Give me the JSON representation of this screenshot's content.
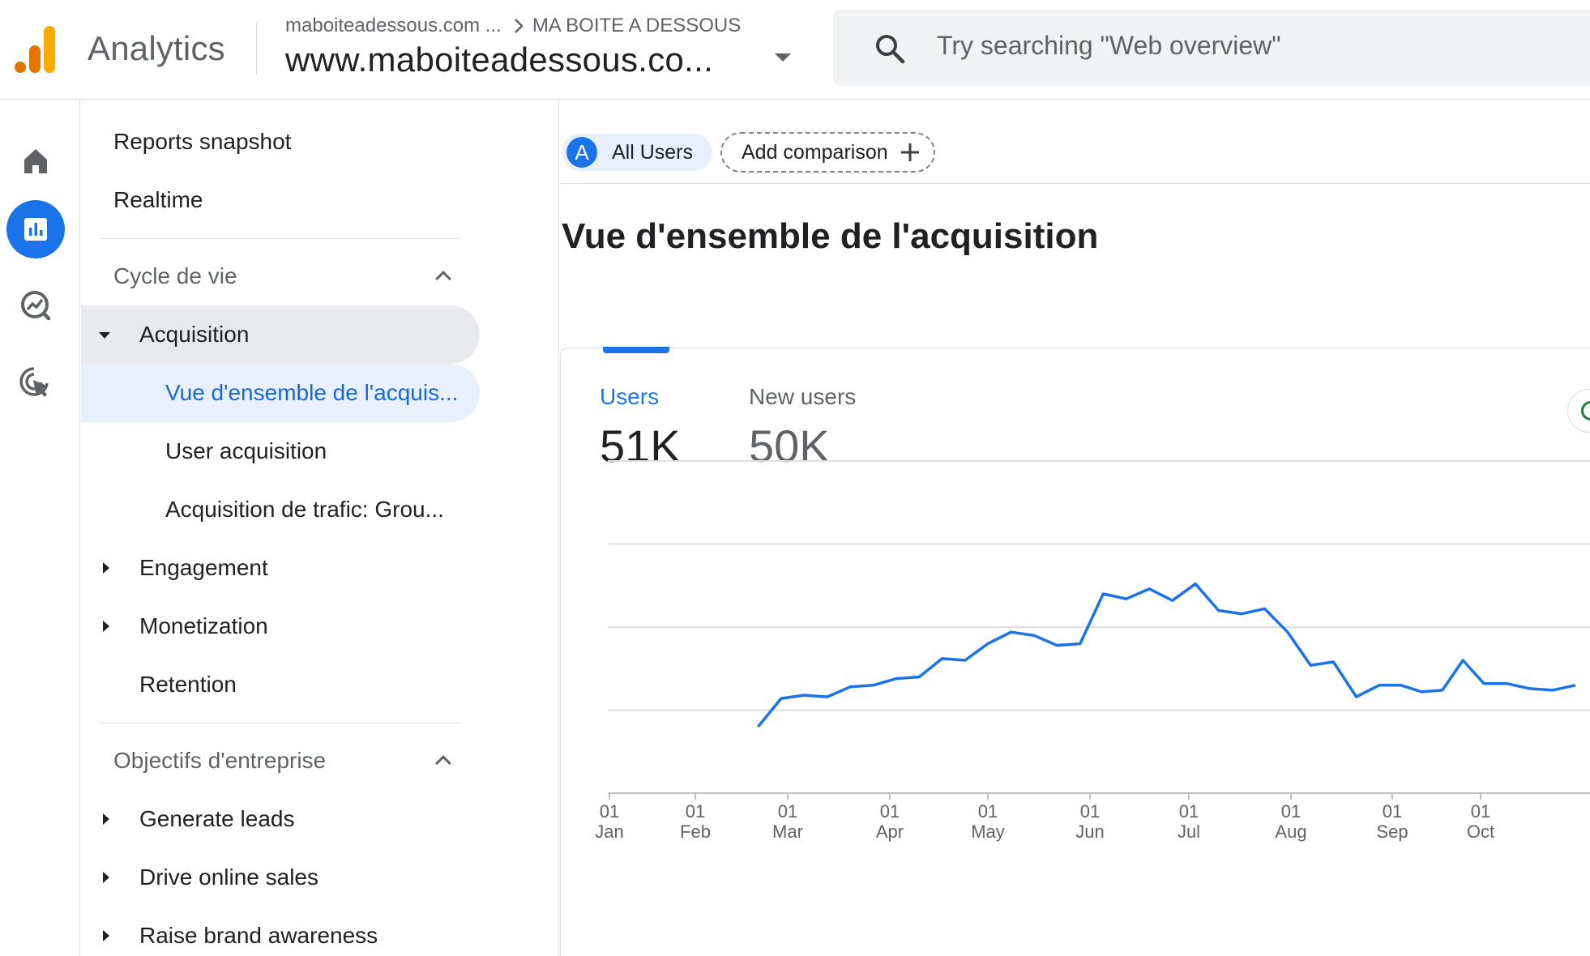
{
  "header": {
    "app_title": "Analytics",
    "account": "maboiteadessous.com ...",
    "account_child": "MA BOITE A DESSOUS",
    "property": "www.maboiteadessous.co...",
    "search_placeholder": "Try searching \"Web overview\""
  },
  "colors": {
    "accent": "#1a73e8",
    "active_nav_bg": "#e8f0fe",
    "logo": [
      "#e37400",
      "#e37400",
      "#f9ab00"
    ]
  },
  "rail": {
    "items": [
      {
        "icon": "home-icon"
      },
      {
        "icon": "reports-icon",
        "active": true
      },
      {
        "icon": "explore-icon"
      },
      {
        "icon": "advertising-icon"
      }
    ]
  },
  "nav": {
    "reports_snapshot": "Reports snapshot",
    "realtime": "Realtime",
    "lifecycle": "Cycle de vie",
    "acquisition": "Acquisition",
    "acq_overview": "Vue d'ensemble de l'acquis...",
    "user_acquisition": "User acquisition",
    "traffic_acquisition": "Acquisition de trafic: Grou...",
    "engagement": "Engagement",
    "monetization": "Monetization",
    "retention": "Retention",
    "business_objectives": "Objectifs d'entreprise",
    "generate_leads": "Generate leads",
    "drive_online_sales": "Drive online sales",
    "raise_brand_awareness": "Raise brand awareness"
  },
  "main": {
    "segment_avatar": "A",
    "segment_label": "All Users",
    "add_comparison": "Add comparison",
    "page_title": "Vue d'ensemble de l'acquisition",
    "metrics": [
      {
        "label": "Users",
        "value": "51K",
        "active": true
      },
      {
        "label": "New users",
        "value": "50K",
        "active": false
      }
    ]
  },
  "chart_data": {
    "type": "line",
    "x_ticks": [
      {
        "day": "01",
        "month": "Jan"
      },
      {
        "day": "01",
        "month": "Feb"
      },
      {
        "day": "01",
        "month": "Mar"
      },
      {
        "day": "01",
        "month": "Apr"
      },
      {
        "day": "01",
        "month": "May"
      },
      {
        "day": "01",
        "month": "Jun"
      },
      {
        "day": "01",
        "month": "Jul"
      },
      {
        "day": "01",
        "month": "Aug"
      },
      {
        "day": "01",
        "month": "Sep"
      },
      {
        "day": "01",
        "month": "Oct"
      }
    ],
    "x": [
      "2023-02-20",
      "2023-02-27",
      "2023-03-06",
      "2023-03-13",
      "2023-03-20",
      "2023-03-27",
      "2023-04-03",
      "2023-04-10",
      "2023-04-17",
      "2023-04-24",
      "2023-05-01",
      "2023-05-08",
      "2023-05-15",
      "2023-05-22",
      "2023-05-29",
      "2023-06-05",
      "2023-06-12",
      "2023-06-19",
      "2023-06-26",
      "2023-07-03",
      "2023-07-10",
      "2023-07-17",
      "2023-07-24",
      "2023-07-31",
      "2023-08-07",
      "2023-08-14",
      "2023-08-21",
      "2023-08-28",
      "2023-09-04",
      "2023-09-11",
      "2023-09-18",
      "2023-09-25",
      "2023-10-02",
      "2023-10-09",
      "2023-10-16",
      "2023-10-23",
      "2023-10-30"
    ],
    "series": [
      {
        "values": [
          40,
          57,
          59,
          58,
          64,
          65,
          69,
          70,
          81,
          80,
          90,
          97,
          95,
          89,
          90,
          120,
          117,
          123,
          116,
          126,
          110,
          108,
          111,
          97,
          77,
          79,
          58,
          65,
          65,
          61,
          62,
          80,
          66,
          66,
          63,
          62,
          65
        ],
        "color": "#1a73e8"
      }
    ],
    "ylim": [
      0,
      200
    ],
    "grid": true
  }
}
